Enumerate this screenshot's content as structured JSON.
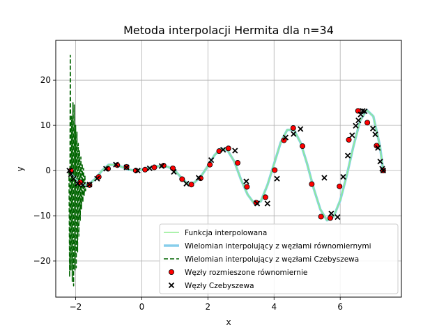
{
  "chart_data": {
    "type": "line",
    "title": "Metoda interpolacji Hermita dla n=34",
    "xlabel": "x",
    "ylabel": "y",
    "xlim": [
      -2.6,
      7.85
    ],
    "ylim": [
      -28,
      28.8
    ],
    "xticks": [
      -2,
      0,
      2,
      4,
      6
    ],
    "yticks": [
      -20,
      -10,
      0,
      10,
      20
    ],
    "grid": true,
    "legend_position": "lower-right",
    "series": [
      {
        "name": "Funkcja interpolowana",
        "kind": "line",
        "color": "#90ee90",
        "x": [
          -2.2,
          -2.0,
          -1.8,
          -1.6,
          -1.4,
          -1.2,
          -1.0,
          -0.8,
          -0.6,
          -0.4,
          -0.2,
          0.0,
          0.2,
          0.4,
          0.6,
          0.8,
          1.0,
          1.2,
          1.4,
          1.6,
          1.8,
          2.0,
          2.2,
          2.4,
          2.6,
          2.8,
          3.0,
          3.2,
          3.4,
          3.6,
          3.8,
          4.0,
          4.2,
          4.4,
          4.6,
          4.8,
          5.0,
          5.2,
          5.4,
          5.6,
          5.8,
          6.0,
          6.2,
          6.4,
          6.6,
          6.8,
          7.0,
          7.2,
          7.3
        ],
        "y": [
          0.0,
          -2.0,
          -3.2,
          -3.0,
          -1.8,
          0.0,
          1.3,
          1.3,
          0.8,
          0.2,
          0.0,
          0.2,
          0.6,
          0.9,
          1.0,
          0.8,
          0.0,
          -1.6,
          -3.0,
          -2.6,
          -1.2,
          1.0,
          3.4,
          4.9,
          4.4,
          2.0,
          -2.0,
          -5.3,
          -7.3,
          -6.8,
          -3.2,
          1.5,
          6.2,
          9.0,
          9.0,
          6.2,
          1.5,
          -4.0,
          -8.6,
          -11.0,
          -10.2,
          -6.6,
          -1.0,
          5.4,
          11.0,
          13.4,
          12.0,
          5.5,
          0.0
        ]
      },
      {
        "name": "Wielomian interpolujący z węzłami równomiernymi",
        "kind": "line",
        "color": "#87ceeb",
        "x": [
          -2.2,
          -2.0,
          -1.8,
          -1.6,
          -1.4,
          -1.2,
          -1.0,
          -0.8,
          -0.6,
          -0.4,
          -0.2,
          0.0,
          0.2,
          0.4,
          0.6,
          0.8,
          1.0,
          1.2,
          1.4,
          1.6,
          1.8,
          2.0,
          2.2,
          2.4,
          2.6,
          2.8,
          3.0,
          3.2,
          3.4,
          3.6,
          3.8,
          4.0,
          4.2,
          4.4,
          4.6,
          4.8,
          5.0,
          5.2,
          5.4,
          5.6,
          5.8,
          6.0,
          6.2,
          6.4,
          6.6,
          6.8,
          7.0,
          7.2,
          7.3
        ],
        "y": [
          0.0,
          -2.0,
          -3.2,
          -3.0,
          -1.8,
          0.0,
          1.3,
          1.3,
          0.8,
          0.2,
          0.0,
          0.2,
          0.6,
          0.9,
          1.0,
          0.8,
          0.0,
          -1.6,
          -3.0,
          -2.6,
          -1.2,
          1.0,
          3.4,
          4.9,
          4.4,
          2.0,
          -2.0,
          -5.3,
          -7.3,
          -6.8,
          -3.2,
          1.5,
          6.2,
          9.0,
          9.0,
          6.2,
          1.5,
          -4.0,
          -8.6,
          -11.0,
          -10.2,
          -6.6,
          -1.0,
          5.4,
          11.0,
          13.4,
          12.0,
          5.5,
          0.0
        ]
      },
      {
        "name": "Wielomian interpolujący z węzłami Czebyszewa",
        "kind": "dashed-line",
        "color": "#006400",
        "x": [
          -2.2,
          -2.18,
          -2.16,
          -2.14,
          -2.12,
          -2.1,
          -2.08,
          -2.06,
          -2.04,
          -2.02,
          -2.0,
          -1.98,
          -1.96,
          -1.94,
          -1.92,
          -1.9,
          -1.88,
          -1.86,
          -1.84,
          -1.82,
          -1.8,
          -1.78,
          -1.76,
          -1.74,
          -1.72,
          -1.7,
          -1.65,
          -1.6,
          -1.5,
          -1.4,
          -1.2,
          -1.0,
          -0.8,
          -0.6,
          -0.4,
          -0.2,
          0.0,
          0.2,
          0.4,
          0.6,
          0.8,
          1.0,
          1.2,
          1.4,
          1.6,
          1.8,
          2.0,
          2.2,
          2.4,
          2.6,
          2.8,
          3.0,
          3.2,
          3.4,
          3.6,
          3.8,
          4.0,
          4.2,
          4.4,
          4.6,
          4.8,
          5.0,
          5.2,
          5.4,
          5.6,
          5.8,
          6.0,
          6.2,
          6.4,
          6.6,
          6.8,
          7.0,
          7.2,
          7.3
        ],
        "y": [
          0.0,
          -23.5,
          25.5,
          -22.0,
          12.0,
          -24.5,
          15.0,
          -25.5,
          14.5,
          -22.0,
          10.0,
          -21.5,
          8.5,
          -18.0,
          6.0,
          -14.5,
          4.5,
          -11.0,
          3.0,
          -8.5,
          1.5,
          -7.0,
          0.5,
          -5.5,
          -1.0,
          -4.5,
          -2.5,
          -3.5,
          -2.6,
          -1.8,
          0.0,
          1.3,
          1.3,
          0.8,
          0.2,
          0.0,
          0.2,
          0.6,
          0.9,
          1.0,
          0.8,
          0.0,
          -1.6,
          -3.0,
          -2.6,
          -1.2,
          1.0,
          3.4,
          4.9,
          4.4,
          2.0,
          -2.0,
          -5.3,
          -7.3,
          -6.8,
          -3.2,
          1.5,
          6.2,
          9.0,
          9.0,
          6.2,
          1.5,
          -4.0,
          -8.6,
          -11.0,
          -10.2,
          -6.6,
          -1.0,
          5.4,
          11.0,
          13.4,
          12.0,
          5.5,
          0.0
        ]
      },
      {
        "name": "Węzły rozmieszone równomiernie",
        "kind": "scatter-circle",
        "color": "#ff0000",
        "x": [
          -2.14,
          -1.86,
          -1.58,
          -1.3,
          -1.02,
          -0.74,
          -0.46,
          -0.18,
          0.1,
          0.38,
          0.66,
          0.94,
          1.22,
          1.5,
          1.78,
          2.06,
          2.34,
          2.62,
          2.9,
          3.18,
          3.46,
          3.74,
          4.02,
          4.3,
          4.58,
          4.86,
          5.14,
          5.42,
          5.7,
          5.98,
          6.26,
          6.54,
          6.82,
          7.1,
          7.3
        ],
        "y": [
          0.0,
          -2.6,
          -3.2,
          -1.4,
          0.4,
          1.2,
          0.8,
          0.0,
          0.2,
          0.7,
          1.1,
          0.5,
          -1.9,
          -3.1,
          -1.7,
          1.3,
          4.3,
          4.9,
          1.7,
          -3.6,
          -7.1,
          -5.9,
          0.1,
          6.7,
          9.4,
          5.4,
          -3.0,
          -10.2,
          -10.5,
          -3.5,
          6.8,
          13.2,
          10.6,
          5.5,
          0.0
        ]
      },
      {
        "name": "Węzły Czebyszewa",
        "kind": "scatter-x",
        "color": "#000000",
        "x": [
          -2.19,
          -2.14,
          -2.06,
          -1.94,
          -1.78,
          -1.58,
          -1.35,
          -1.08,
          -0.78,
          -0.46,
          -0.12,
          0.24,
          0.6,
          0.97,
          1.35,
          1.72,
          2.1,
          2.46,
          2.82,
          3.16,
          3.49,
          3.8,
          4.09,
          4.35,
          4.59,
          4.8,
          5.52,
          5.73,
          5.92,
          6.09,
          6.23,
          6.36,
          6.47,
          6.55,
          6.62,
          6.68,
          6.74,
          6.99,
          7.06,
          7.14,
          7.21,
          7.27,
          7.3
        ],
        "y": [
          0.0,
          -0.8,
          -1.8,
          -2.9,
          -3.2,
          -3.1,
          -1.8,
          0.4,
          1.3,
          0.7,
          0.0,
          0.5,
          1.0,
          -0.3,
          -2.9,
          -1.6,
          2.3,
          4.6,
          4.4,
          -2.4,
          -7.3,
          -7.3,
          -1.8,
          7.3,
          8.1,
          9.2,
          -1.6,
          -9.5,
          -10.3,
          -1.4,
          3.3,
          7.8,
          9.9,
          11.1,
          12.4,
          13.2,
          13.1,
          9.3,
          8.0,
          5.0,
          2.0,
          0.4,
          0.0
        ]
      }
    ]
  }
}
